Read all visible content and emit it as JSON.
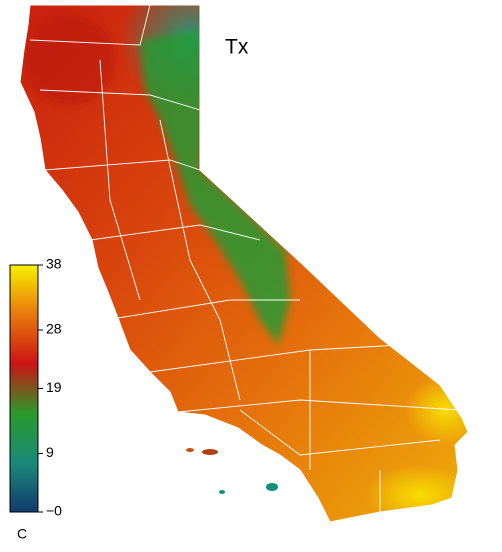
{
  "title": "Tx",
  "colorbar": {
    "unit": "C",
    "lim": [
      0,
      38
    ],
    "ticks": [
      {
        "value": 0,
        "label": "−0"
      },
      9,
      19,
      28,
      38
    ],
    "colors": [
      "#123a6e",
      "#1a8a7a",
      "#2a9a2a",
      "#cc1414",
      "#e8780c",
      "#f8f000"
    ]
  }
}
